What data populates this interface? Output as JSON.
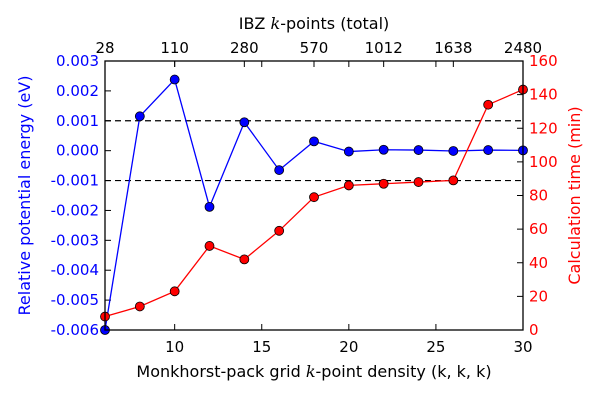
{
  "chart_data": {
    "type": "line",
    "title": "",
    "xlabel": "Monkhorst-pack grid k-point density (k, k, k)",
    "xlabel_parts": {
      "before": "Monkhorst-pack grid ",
      "italic": "k",
      "after": "-point density (k, k, k)"
    },
    "ylabel": "Relative potential energy (eV)",
    "y2label": "Calculation time (min)",
    "top_xlabel": "IBZ k-points (total)",
    "top_xlabel_parts": {
      "before": "IBZ ",
      "italic": "k",
      "after": "-points (total)"
    },
    "xlim": [
      6,
      30
    ],
    "ylim": [
      -0.006,
      0.003
    ],
    "y2lim": [
      0,
      160
    ],
    "x_ticks": [
      "10",
      "15",
      "20",
      "25",
      "30"
    ],
    "y_ticks": [
      "-0.006",
      "-0.005",
      "-0.004",
      "-0.003",
      "-0.002",
      "-0.001",
      "0.000",
      "0.001",
      "0.002",
      "0.003"
    ],
    "y2_ticks": [
      "0",
      "20",
      "40",
      "60",
      "80",
      "100",
      "120",
      "140",
      "160"
    ],
    "top_ticks": [
      {
        "x": 6,
        "label": "28"
      },
      {
        "x": 10,
        "label": "110"
      },
      {
        "x": 14,
        "label": "280"
      },
      {
        "x": 18,
        "label": "570"
      },
      {
        "x": 22,
        "label": "1012"
      },
      {
        "x": 26,
        "label": "1638"
      },
      {
        "x": 30,
        "label": "2480"
      }
    ],
    "reference_lines": [
      0.001,
      -0.001
    ],
    "x": [
      6,
      8,
      10,
      12,
      14,
      16,
      18,
      20,
      22,
      24,
      26,
      28,
      30
    ],
    "series": [
      {
        "axis": "left",
        "color": "#0000ff",
        "values": [
          -0.006,
          0.00115,
          0.00238,
          -0.00188,
          0.00095,
          -0.00065,
          0.00031,
          -3e-05,
          3e-05,
          2e-05,
          -1e-05,
          2e-05,
          1e-05
        ]
      },
      {
        "axis": "right",
        "color": "#ff0000",
        "values": [
          8,
          14,
          23,
          50,
          42,
          59,
          79,
          86,
          87,
          88,
          89,
          134,
          143
        ]
      }
    ]
  }
}
